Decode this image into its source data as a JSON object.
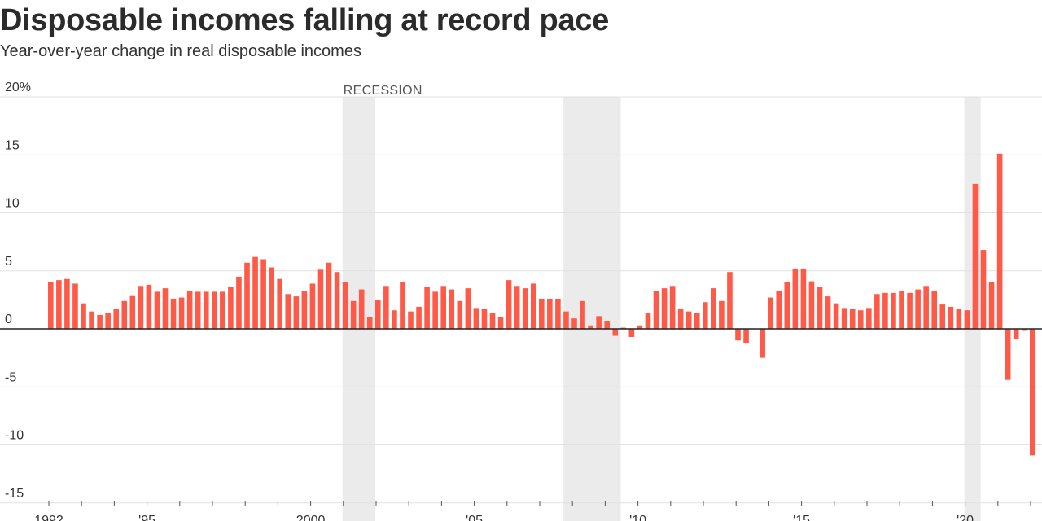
{
  "title": "Disposable incomes falling at record pace",
  "subtitle": "Year-over-year change in real disposable incomes",
  "colors": {
    "bar": "#ff5a47",
    "recession": "#ebebeb",
    "grid": "#e2e2e2",
    "zero_line": "#222222"
  },
  "chart_data": {
    "type": "bar",
    "title": "Disposable incomes falling at record pace",
    "subtitle": "Year-over-year change in real disposable incomes",
    "frequency": "quarterly",
    "start": "1992 Q1",
    "ylim": [
      -15,
      20
    ],
    "yticks": [
      -15,
      -10,
      -5,
      0,
      5,
      10,
      15,
      20
    ],
    "ytick_labels": [
      "-15",
      "-10",
      "-5",
      "0",
      "5",
      "10",
      "15",
      "20%"
    ],
    "xticks": [
      {
        "year": 1992,
        "label": "1992"
      },
      {
        "year": 1995,
        "label": "'95"
      },
      {
        "year": 2000,
        "label": "2000"
      },
      {
        "year": 2005,
        "label": "'05"
      },
      {
        "year": 2010,
        "label": "'10"
      },
      {
        "year": 2015,
        "label": "'15"
      },
      {
        "year": 2020,
        "label": "'20"
      }
    ],
    "recession_label": "RECESSION",
    "recessions": [
      [
        "2001 Q1",
        "2001 Q4"
      ],
      [
        "2007 Q4",
        "2009 Q2"
      ],
      [
        "2020 Q1",
        "2020 Q2"
      ]
    ],
    "grid": true,
    "values": [
      4.0,
      4.2,
      4.3,
      3.9,
      2.2,
      1.5,
      1.2,
      1.4,
      1.7,
      2.4,
      2.9,
      3.7,
      3.8,
      3.2,
      3.5,
      2.6,
      2.7,
      3.3,
      3.2,
      3.2,
      3.2,
      3.2,
      3.6,
      4.5,
      5.7,
      6.2,
      6.0,
      5.3,
      4.3,
      3.0,
      2.8,
      3.3,
      3.9,
      5.1,
      5.7,
      4.9,
      4.0,
      2.4,
      3.4,
      1.0,
      2.5,
      3.7,
      1.6,
      4.0,
      1.5,
      1.9,
      3.6,
      3.2,
      3.7,
      3.4,
      2.4,
      3.5,
      1.8,
      1.7,
      1.4,
      1.0,
      4.2,
      3.7,
      3.5,
      3.9,
      2.6,
      2.6,
      2.6,
      1.5,
      0.9,
      2.4,
      0.3,
      1.1,
      0.7,
      -0.6,
      0.1,
      -0.7,
      0.3,
      1.4,
      3.3,
      3.5,
      3.7,
      1.7,
      1.5,
      1.4,
      2.3,
      3.5,
      2.4,
      4.9,
      -1.0,
      -1.2,
      0.0,
      -2.5,
      2.7,
      3.3,
      4.0,
      5.2,
      5.2,
      4.1,
      3.6,
      2.8,
      2.2,
      1.8,
      1.7,
      1.6,
      1.8,
      3.0,
      3.1,
      3.1,
      3.3,
      3.1,
      3.4,
      3.7,
      3.3,
      2.1,
      1.9,
      1.7,
      1.6,
      12.5,
      6.8,
      4.0,
      15.1,
      -4.4,
      -0.9,
      -0.1,
      -10.9
    ]
  }
}
